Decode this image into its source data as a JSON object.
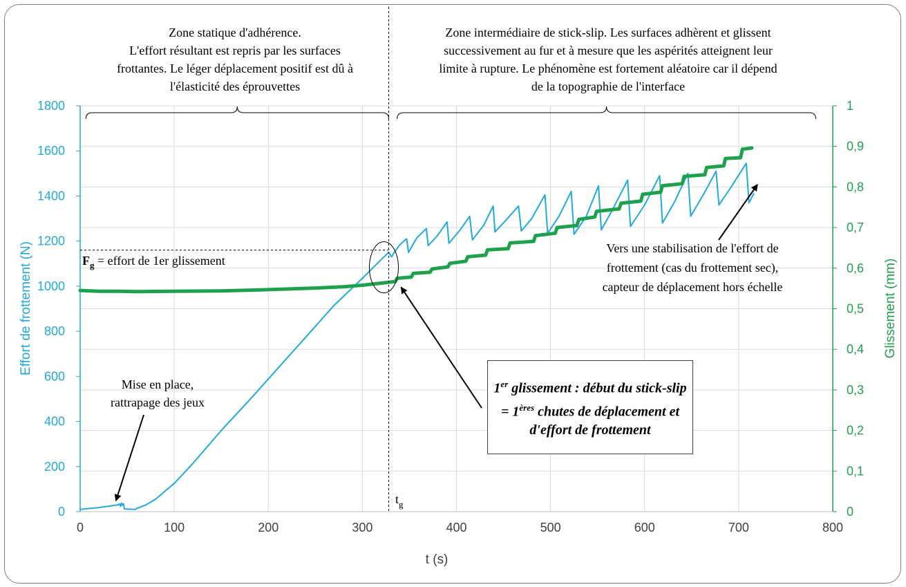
{
  "chart_data": {
    "type": "line",
    "title": "",
    "xlabel": "t (s)",
    "ylabel": "Effort de frottement (N)",
    "ylabel_right": "Glissement (mm)",
    "xlim": [
      0,
      800
    ],
    "ylim": [
      0,
      1800
    ],
    "ylim_right": [
      0,
      1
    ],
    "x_ticks": [
      "0",
      "100",
      "200",
      "300",
      "400",
      "500",
      "600",
      "700",
      "800"
    ],
    "y_ticks": [
      "0",
      "200",
      "400",
      "600",
      "800",
      "1000",
      "1200",
      "1400",
      "1600",
      "1800"
    ],
    "y_ticks_right": [
      "0",
      "0,1",
      "0,2",
      "0,3",
      "0,4",
      "0,5",
      "0,6",
      "0,7",
      "0,8",
      "0,9",
      "1"
    ],
    "grid": true,
    "colors": {
      "effort": "#1fa9e1",
      "glissement": "#1ca24b",
      "grid": "#d9d9d9"
    },
    "series": [
      {
        "axis": "left",
        "points": [
          [
            0,
            10
          ],
          [
            20,
            18
          ],
          [
            40,
            30
          ],
          [
            42,
            34
          ],
          [
            43,
            24
          ],
          [
            44,
            38
          ],
          [
            45,
            28
          ],
          [
            46,
            35
          ],
          [
            47,
            12
          ],
          [
            59,
            10
          ],
          [
            60,
            14
          ],
          [
            70,
            30
          ],
          [
            80,
            55
          ],
          [
            100,
            125
          ],
          [
            120,
            215
          ],
          [
            150,
            360
          ],
          [
            180,
            495
          ],
          [
            210,
            635
          ],
          [
            240,
            775
          ],
          [
            270,
            915
          ],
          [
            300,
            1035
          ],
          [
            320,
            1118
          ],
          [
            328,
            1150
          ],
          [
            331,
            1130
          ],
          [
            333,
            1145
          ],
          [
            340,
            1185
          ],
          [
            347,
            1210
          ],
          [
            349,
            1150
          ],
          [
            358,
            1215
          ],
          [
            368,
            1255
          ],
          [
            370,
            1180
          ],
          [
            380,
            1225
          ],
          [
            390,
            1285
          ],
          [
            392,
            1190
          ],
          [
            404,
            1250
          ],
          [
            414,
            1310
          ],
          [
            417,
            1205
          ],
          [
            429,
            1270
          ],
          [
            439,
            1355
          ],
          [
            441,
            1240
          ],
          [
            452,
            1290
          ],
          [
            466,
            1355
          ],
          [
            469,
            1245
          ],
          [
            480,
            1300
          ],
          [
            494,
            1405
          ],
          [
            497,
            1235
          ],
          [
            509,
            1310
          ],
          [
            522,
            1420
          ],
          [
            525,
            1230
          ],
          [
            538,
            1310
          ],
          [
            551,
            1445
          ],
          [
            554,
            1250
          ],
          [
            566,
            1340
          ],
          [
            582,
            1470
          ],
          [
            585,
            1265
          ],
          [
            600,
            1360
          ],
          [
            616,
            1490
          ],
          [
            619,
            1280
          ],
          [
            632,
            1375
          ],
          [
            646,
            1500
          ],
          [
            649,
            1310
          ],
          [
            663,
            1410
          ],
          [
            676,
            1510
          ],
          [
            679,
            1360
          ],
          [
            692,
            1440
          ],
          [
            708,
            1545
          ],
          [
            711,
            1370
          ],
          [
            716,
            1410
          ]
        ]
      },
      {
        "axis": "right",
        "points": [
          [
            0,
            0.545
          ],
          [
            20,
            0.543
          ],
          [
            40,
            0.543
          ],
          [
            60,
            0.542
          ],
          [
            100,
            0.543
          ],
          [
            150,
            0.544
          ],
          [
            200,
            0.547
          ],
          [
            250,
            0.551
          ],
          [
            280,
            0.554
          ],
          [
            300,
            0.558
          ],
          [
            320,
            0.563
          ],
          [
            335,
            0.567
          ],
          [
            337,
            0.575
          ],
          [
            352,
            0.578
          ],
          [
            354,
            0.587
          ],
          [
            372,
            0.59
          ],
          [
            374,
            0.598
          ],
          [
            391,
            0.603
          ],
          [
            393,
            0.612
          ],
          [
            410,
            0.617
          ],
          [
            412,
            0.628
          ],
          [
            431,
            0.632
          ],
          [
            433,
            0.645
          ],
          [
            455,
            0.648
          ],
          [
            457,
            0.662
          ],
          [
            482,
            0.666
          ],
          [
            484,
            0.68
          ],
          [
            505,
            0.686
          ],
          [
            507,
            0.7
          ],
          [
            528,
            0.705
          ],
          [
            530,
            0.72
          ],
          [
            547,
            0.726
          ],
          [
            549,
            0.74
          ],
          [
            573,
            0.746
          ],
          [
            575,
            0.76
          ],
          [
            596,
            0.765
          ],
          [
            598,
            0.782
          ],
          [
            617,
            0.787
          ],
          [
            619,
            0.803
          ],
          [
            640,
            0.808
          ],
          [
            642,
            0.826
          ],
          [
            664,
            0.83
          ],
          [
            666,
            0.848
          ],
          [
            684,
            0.852
          ],
          [
            686,
            0.87
          ],
          [
            702,
            0.872
          ],
          [
            704,
            0.893
          ],
          [
            714,
            0.896
          ]
        ]
      }
    ],
    "annotations": {
      "zone1": [
        "Zone statique d'adhérence.",
        "L'effort résultant est repris par les surfaces",
        "frottantes. Le léger déplacement positif est dû à",
        "l'élasticité des éprouvettes"
      ],
      "zone2": [
        "Zone intermédiaire de stick-slip. Les surfaces adhèrent et glissent",
        "successivement au fur et à mesure que les aspérités atteignent leur",
        "limite à rupture. Le phénomène est fortement aléatoire car il dépend",
        "de la topographie de l'interface"
      ],
      "fg_bold": "F",
      "fg_sub": "g",
      "fg_rest": " = effort de 1er glissement",
      "tg": "t",
      "tg_sub": "g",
      "mise": [
        "Mise en place,",
        "rattrapage des jeux"
      ],
      "vers": [
        "Vers une stabilisation de l'effort de",
        "frottement (cas du frottement sec),",
        "capteur de déplacement hors échelle"
      ],
      "callout": {
        "a": "1",
        "a_sup": "er",
        "b": " glissement : début du stick-slip = 1",
        "b_sup": "ères",
        "c": " chutes de déplacement et d'effort de frottement"
      }
    }
  }
}
